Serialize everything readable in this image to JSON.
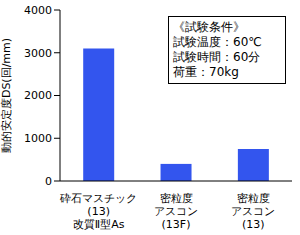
{
  "chart_data": {
    "type": "bar",
    "y_label": "動的安定度DS(回/mm)",
    "categories": [
      "砕石マスチック\n(13)\n改質Ⅱ型As",
      "密粒度\nアスコン\n(13F)",
      "密粒度\nアスコン\n(13)"
    ],
    "values": [
      3100,
      400,
      750
    ],
    "color": "#3355ee",
    "ylim": [
      0,
      4000
    ],
    "yticks": [
      0,
      1000,
      2000,
      3000,
      4000
    ],
    "grid": false,
    "annotation": [
      "《試験条件》",
      "試験温度：60℃",
      "試験時間：60分",
      "荷重：70kg"
    ]
  }
}
